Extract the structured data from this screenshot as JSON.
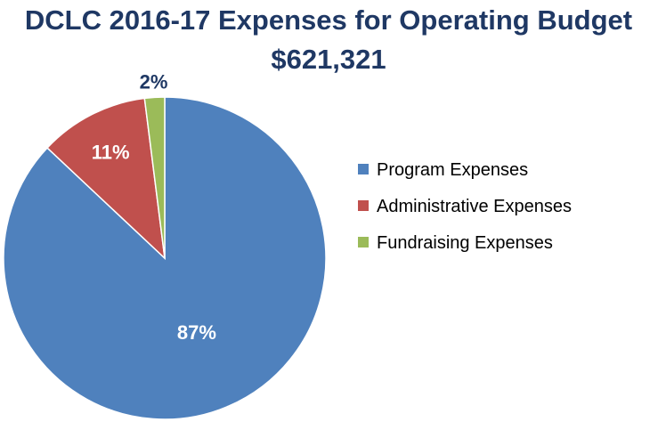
{
  "chart_data": {
    "type": "pie",
    "title": "DCLC 2016-17 Expenses for Operating Budget",
    "subtitle": "$621,321",
    "slices": [
      {
        "name": "Program Expenses",
        "value": 87,
        "label": "87%",
        "color": "#4f81bd"
      },
      {
        "name": "Administrative Expenses",
        "value": 11,
        "label": "11%",
        "color": "#c0504d"
      },
      {
        "name": "Fundraising Expenses",
        "value": 2,
        "label": "2%",
        "color": "#9bbb59"
      }
    ],
    "legend_position": "right"
  }
}
